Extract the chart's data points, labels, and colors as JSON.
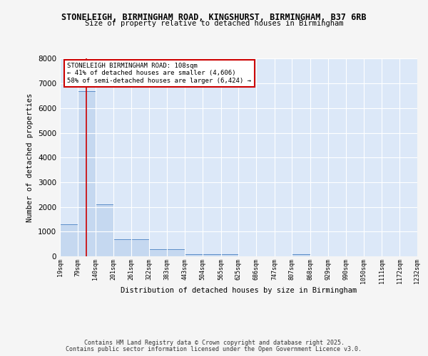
{
  "title1": "STONELEIGH, BIRMINGHAM ROAD, KINGSHURST, BIRMINGHAM, B37 6RB",
  "title2": "Size of property relative to detached houses in Birmingham",
  "xlabel": "Distribution of detached houses by size in Birmingham",
  "ylabel": "Number of detached properties",
  "bin_edges": [
    19,
    79,
    140,
    201,
    261,
    322,
    383,
    443,
    504,
    565,
    625,
    686,
    747,
    807,
    868,
    929,
    990,
    1050,
    1111,
    1172,
    1232
  ],
  "bar_heights": [
    1300,
    6700,
    2100,
    700,
    700,
    300,
    300,
    100,
    100,
    100,
    0,
    0,
    0,
    100,
    0,
    0,
    0,
    0,
    0,
    0
  ],
  "bar_color": "#c5d8f0",
  "bar_edge_color": "#5b8dc8",
  "plot_bg_color": "#dce8f8",
  "fig_bg_color": "#f5f5f5",
  "grid_color": "#ffffff",
  "red_line_x": 108,
  "property_label": "STONELEIGH BIRMINGHAM ROAD: 108sqm",
  "annotation_line1": "← 41% of detached houses are smaller (4,606)",
  "annotation_line2": "58% of semi-detached houses are larger (6,424) →",
  "annotation_box_color": "#ffffff",
  "annotation_border_color": "#cc0000",
  "red_line_color": "#cc0000",
  "ylim": [
    0,
    8000
  ],
  "yticks": [
    0,
    1000,
    2000,
    3000,
    4000,
    5000,
    6000,
    7000,
    8000
  ],
  "footer1": "Contains HM Land Registry data © Crown copyright and database right 2025.",
  "footer2": "Contains public sector information licensed under the Open Government Licence v3.0."
}
